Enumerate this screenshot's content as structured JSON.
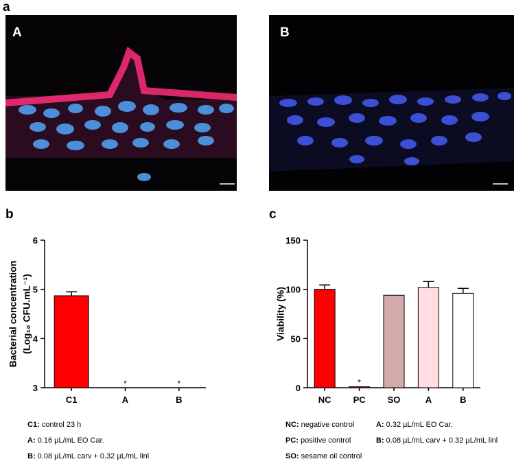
{
  "figure": {
    "panel_label": "a",
    "image_labels": [
      "A",
      "B"
    ]
  },
  "chart_data": [
    {
      "type": "bar",
      "panel_label": "b",
      "ylabel_lines": [
        "Bacterial concentration",
        "(Log₁₀ CFU.mL⁻¹)"
      ],
      "categories": [
        "C1",
        "A",
        "B"
      ],
      "values": [
        4.87,
        null,
        null
      ],
      "errors": [
        0.08,
        null,
        null
      ],
      "annotations": [
        null,
        "*",
        "*"
      ],
      "colors": [
        "#ff0000",
        "#ff0000",
        "#ff0000"
      ],
      "ylim": [
        3,
        6
      ],
      "yticks": [
        3,
        4,
        5,
        6
      ],
      "notes": [
        {
          "key": "C1:",
          "text": " control 23 h"
        },
        {
          "key": "A:",
          "text": " 0.16 µL/mL EO Car."
        },
        {
          "key": "B:",
          "text": " 0.08 µL/mL carv + 0.32 µL/mL linl"
        }
      ]
    },
    {
      "type": "bar",
      "panel_label": "c",
      "ylabel_lines": [
        "Viability (%)"
      ],
      "categories": [
        "NC",
        "PC",
        "SO",
        "A",
        "B"
      ],
      "values": [
        100,
        1,
        94,
        102,
        96
      ],
      "errors": [
        4.5,
        null,
        null,
        6,
        5
      ],
      "annotations": [
        null,
        "*",
        null,
        null,
        null
      ],
      "colors": [
        "#ff0000",
        "#ff0000",
        "#d4aaaa",
        "#ffdde0",
        "#ffffff"
      ],
      "ylim": [
        0,
        150
      ],
      "yticks": [
        0,
        50,
        100,
        150
      ],
      "notes": [
        {
          "key": "NC:",
          "text": " negative control"
        },
        {
          "key": "PC:",
          "text": " positive control"
        },
        {
          "key": "SO:",
          "text": " sesame oil control"
        },
        {
          "key": "A:",
          "text": " 0.32 µL/mL EO Car."
        },
        {
          "key": "B:",
          "text": " 0.08 µL/mL carv + 0.32 µL/mL linl"
        }
      ]
    }
  ]
}
